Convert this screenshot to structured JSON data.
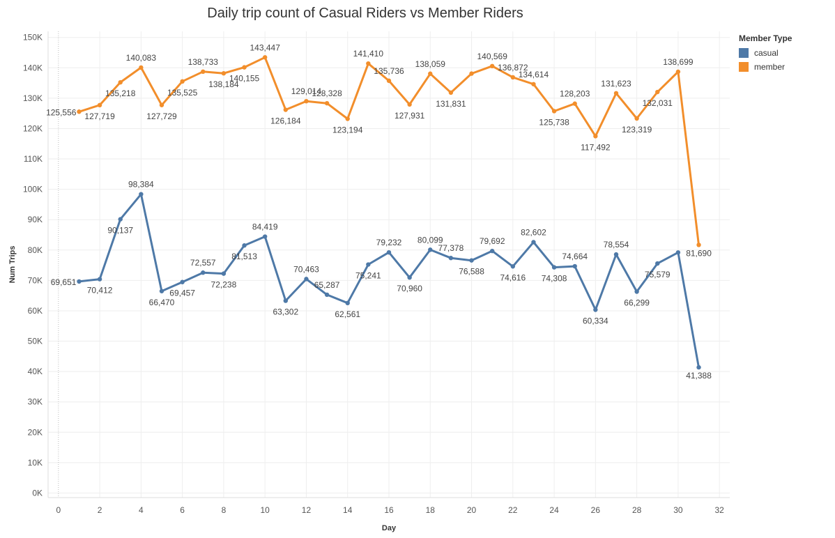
{
  "chart_data": {
    "type": "line",
    "title": "Daily trip count of Casual Riders vs Member Riders",
    "xlabel": "Day",
    "ylabel": "Num Trips",
    "xlim": [
      -0.5,
      32.5
    ],
    "ylim": [
      -1500,
      152000
    ],
    "x_ticks": [
      0,
      2,
      4,
      6,
      8,
      10,
      12,
      14,
      16,
      18,
      20,
      22,
      24,
      26,
      28,
      30,
      32
    ],
    "y_ticks": [
      0,
      10000,
      20000,
      30000,
      40000,
      50000,
      60000,
      70000,
      80000,
      90000,
      100000,
      110000,
      120000,
      130000,
      140000,
      150000
    ],
    "y_tick_labels": [
      "0K",
      "10K",
      "20K",
      "30K",
      "40K",
      "50K",
      "60K",
      "70K",
      "80K",
      "90K",
      "100K",
      "110K",
      "120K",
      "130K",
      "140K",
      "150K"
    ],
    "grid": true,
    "legend_title": "Member Type",
    "legend_position": "top-right",
    "x": [
      1,
      2,
      3,
      4,
      5,
      6,
      7,
      8,
      9,
      10,
      11,
      12,
      13,
      14,
      15,
      16,
      17,
      18,
      19,
      20,
      21,
      22,
      23,
      24,
      25,
      26,
      27,
      28,
      29,
      30,
      31
    ],
    "series": [
      {
        "name": "casual",
        "color": "#4e79a7",
        "values": [
          69651,
          70412,
          90137,
          98384,
          66470,
          69457,
          72557,
          72238,
          81513,
          84419,
          63302,
          70463,
          65287,
          62561,
          75241,
          79232,
          70960,
          80099,
          77378,
          76588,
          79692,
          74616,
          82602,
          74308,
          74664,
          60334,
          78554,
          66299,
          75579,
          79200,
          41388
        ],
        "labels": [
          "69,651",
          "70,412",
          "90,137",
          "98,384",
          "66,470",
          "69,457",
          "72,557",
          "72,238",
          "81,513",
          "84,419",
          "63,302",
          "70,463",
          "65,287",
          "62,561",
          "75,241",
          "79,232",
          "70,960",
          "80,099",
          "77,378",
          "76,588",
          "79,692",
          "74,616",
          "82,602",
          "74,308",
          "74,664",
          "60,334",
          "78,554",
          "66,299",
          "75,579",
          "",
          "41,388"
        ]
      },
      {
        "name": "member",
        "color": "#f28e2b",
        "values": [
          125556,
          127719,
          135218,
          140083,
          127729,
          135525,
          138733,
          138184,
          140155,
          143447,
          126184,
          129014,
          128328,
          123194,
          141410,
          135736,
          127931,
          138059,
          131831,
          138100,
          140569,
          136872,
          134614,
          125738,
          128203,
          117492,
          131623,
          123319,
          132031,
          138699,
          81690
        ],
        "labels": [
          "125,556",
          "127,719",
          "135,218",
          "140,083",
          "127,729",
          "135,525",
          "138,733",
          "138,184",
          "140,155",
          "143,447",
          "126,184",
          "129,014",
          "128,328",
          "123,194",
          "141,410",
          "135,736",
          "127,931",
          "138,059",
          "131,831",
          "",
          "140,569",
          "136,872",
          "134,614",
          "125,738",
          "128,203",
          "117,492",
          "131,623",
          "123,319",
          "132,031",
          "138,699",
          "81,690"
        ]
      }
    ]
  }
}
